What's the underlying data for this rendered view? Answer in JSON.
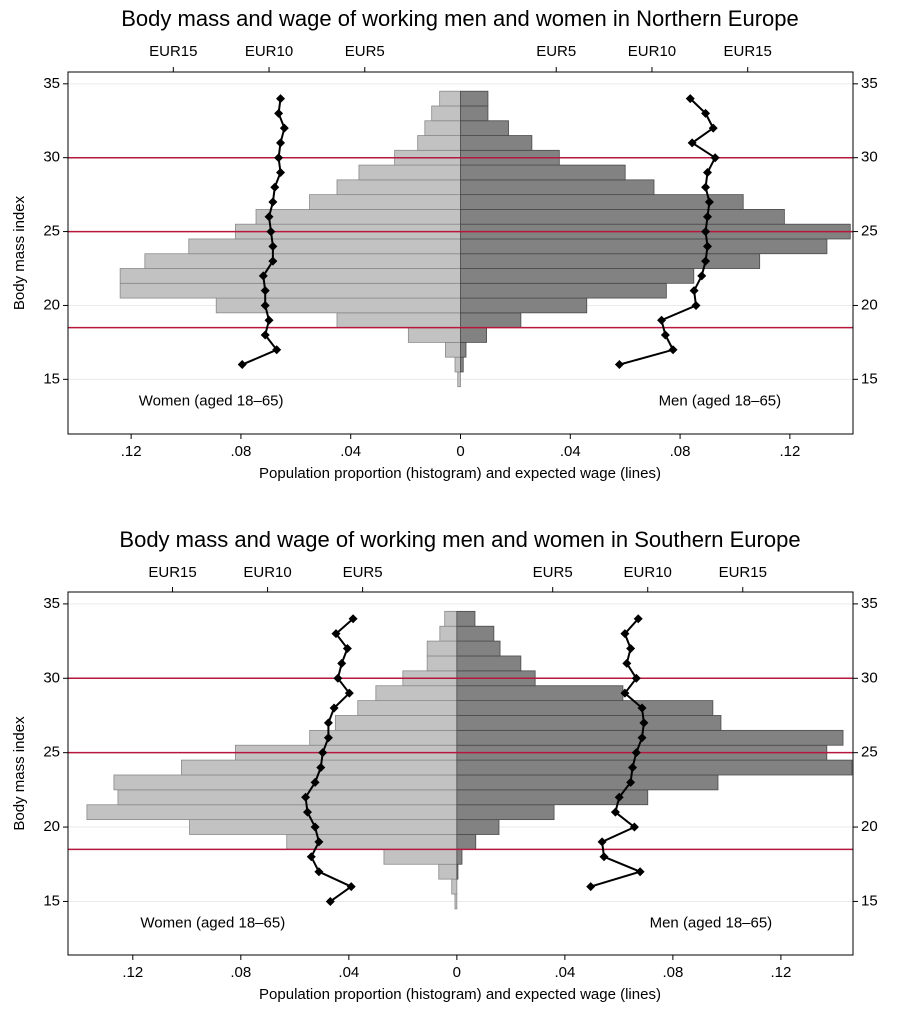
{
  "chart_data": [
    {
      "type": "pyramid",
      "title": "Body mass and wage of working men and women in Northern Europe",
      "xlabel": "Population proportion (histogram) and expected wage (lines)",
      "ylabel": "Body mass index",
      "ylim": [
        11.3,
        35.8
      ],
      "yticks": [
        15,
        20,
        25,
        30,
        35
      ],
      "xlim": [
        -0.143,
        0.143
      ],
      "xticks": [
        {
          "value": -0.12,
          "label": ".12"
        },
        {
          "value": -0.08,
          "label": ".08"
        },
        {
          "value": -0.04,
          "label": ".04"
        },
        0,
        {
          "value": 0.04,
          "label": ".04"
        },
        {
          "value": 0.08,
          "label": ".08"
        },
        {
          "value": 0.12,
          "label": ".12"
        }
      ],
      "x2lim": [
        -20.5,
        20.5
      ],
      "x2ticks": [
        {
          "value": -15,
          "label": "EUR15"
        },
        {
          "value": -10,
          "label": "EUR10"
        },
        {
          "value": -5,
          "label": "EUR5"
        },
        {
          "value": 5,
          "label": "EUR5"
        },
        {
          "value": 10,
          "label": "EUR10"
        },
        {
          "value": 15,
          "label": "EUR15"
        }
      ],
      "reference_lines": [
        18.5,
        25,
        30
      ],
      "reference_color": "#b5173d",
      "grid": true,
      "y": [
        15,
        16,
        17,
        18,
        19,
        20,
        21,
        22,
        23,
        24,
        25,
        26,
        27,
        28,
        29,
        30,
        31,
        32,
        33,
        34
      ],
      "series": [
        {
          "name": "Women (aged 18–65)",
          "side": "left",
          "color": "#c2c2c2",
          "edge": "#8a8a8a",
          "values": [
            0.001,
            0.002,
            0.0055,
            0.019,
            0.045,
            0.089,
            0.124,
            0.124,
            0.115,
            0.099,
            0.082,
            0.0745,
            0.055,
            0.045,
            0.037,
            0.024,
            0.0156,
            0.013,
            0.0105,
            0.0076
          ],
          "wage": [
            null,
            11.4,
            9.6,
            10.2,
            10.0,
            10.2,
            10.2,
            10.3,
            9.8,
            9.8,
            9.9,
            10.0,
            9.8,
            9.7,
            9.4,
            9.5,
            9.4,
            9.2,
            9.5,
            9.4
          ]
        },
        {
          "name": "Men (aged 18–65)",
          "side": "right",
          "color": "#828282",
          "edge": "#4a4a4a",
          "values": [
            0,
            0.001,
            0.002,
            0.0095,
            0.022,
            0.046,
            0.075,
            0.085,
            0.109,
            0.1335,
            0.142,
            0.118,
            0.103,
            0.0705,
            0.06,
            0.036,
            0.026,
            0.0175,
            0.01,
            0.01
          ],
          "wage": [
            null,
            8.3,
            11.1,
            10.7,
            10.5,
            12.3,
            12.2,
            12.6,
            12.8,
            12.9,
            12.8,
            12.9,
            13.0,
            12.8,
            12.9,
            13.3,
            12.1,
            13.2,
            12.8,
            12.0
          ]
        }
      ]
    },
    {
      "type": "pyramid",
      "title": "Body mass and wage of working men and women in Southern Europe",
      "xlabel": "Population proportion (histogram) and expected wage (lines)",
      "ylabel": "Body mass index",
      "ylim": [
        11.4,
        35.8
      ],
      "yticks": [
        15,
        20,
        25,
        30,
        35
      ],
      "xlim": [
        -0.144,
        0.1467
      ],
      "xticks": [
        {
          "value": -0.12,
          "label": ".12"
        },
        {
          "value": -0.08,
          "label": ".08"
        },
        {
          "value": -0.04,
          "label": ".04"
        },
        0,
        {
          "value": 0.04,
          "label": ".04"
        },
        {
          "value": 0.08,
          "label": ".08"
        },
        {
          "value": 0.12,
          "label": ".12"
        }
      ],
      "x2lim": [
        -20.5,
        20.8
      ],
      "x2ticks": [
        {
          "value": -15,
          "label": "EUR15"
        },
        {
          "value": -10,
          "label": "EUR10"
        },
        {
          "value": -5,
          "label": "EUR5"
        },
        {
          "value": 5,
          "label": "EUR5"
        },
        {
          "value": 10,
          "label": "EUR10"
        },
        {
          "value": 15,
          "label": "EUR15"
        }
      ],
      "reference_lines": [
        18.5,
        25,
        30
      ],
      "reference_color": "#b5173d",
      "grid": true,
      "y": [
        15,
        16,
        17,
        18,
        19,
        20,
        21,
        22,
        23,
        24,
        25,
        26,
        27,
        28,
        29,
        30,
        31,
        32,
        33,
        34
      ],
      "series": [
        {
          "name": "Women (aged 18–65)",
          "side": "left",
          "color": "#c2c2c2",
          "edge": "#8a8a8a",
          "values": [
            0.0007,
            0.0019,
            0.0067,
            0.027,
            0.063,
            0.099,
            0.137,
            0.1255,
            0.127,
            0.102,
            0.082,
            0.0545,
            0.045,
            0.0367,
            0.03,
            0.02,
            0.011,
            0.011,
            0.0063,
            0.0045
          ],
          "wage": [
            6.7,
            5.6,
            7.3,
            7.7,
            7.3,
            7.5,
            7.9,
            8.0,
            7.5,
            7.2,
            7.1,
            6.8,
            6.8,
            6.5,
            5.7,
            6.3,
            6.1,
            5.8,
            6.4,
            5.5
          ]
        },
        {
          "name": "Men (aged 18–65)",
          "side": "right",
          "color": "#828282",
          "edge": "#4a4a4a",
          "values": [
            0,
            0,
            0.0004,
            0.0019,
            0.007,
            0.0156,
            0.036,
            0.0707,
            0.0967,
            0.1463,
            0.137,
            0.143,
            0.0978,
            0.0948,
            0.0615,
            0.029,
            0.0237,
            0.016,
            0.0137,
            0.0067
          ],
          "wage": [
            null,
            7.0,
            9.6,
            7.7,
            7.6,
            9.3,
            8.3,
            8.5,
            9.1,
            9.2,
            9.4,
            9.7,
            9.8,
            9.7,
            8.8,
            9.4,
            8.9,
            9.1,
            8.8,
            9.5
          ]
        }
      ]
    }
  ]
}
